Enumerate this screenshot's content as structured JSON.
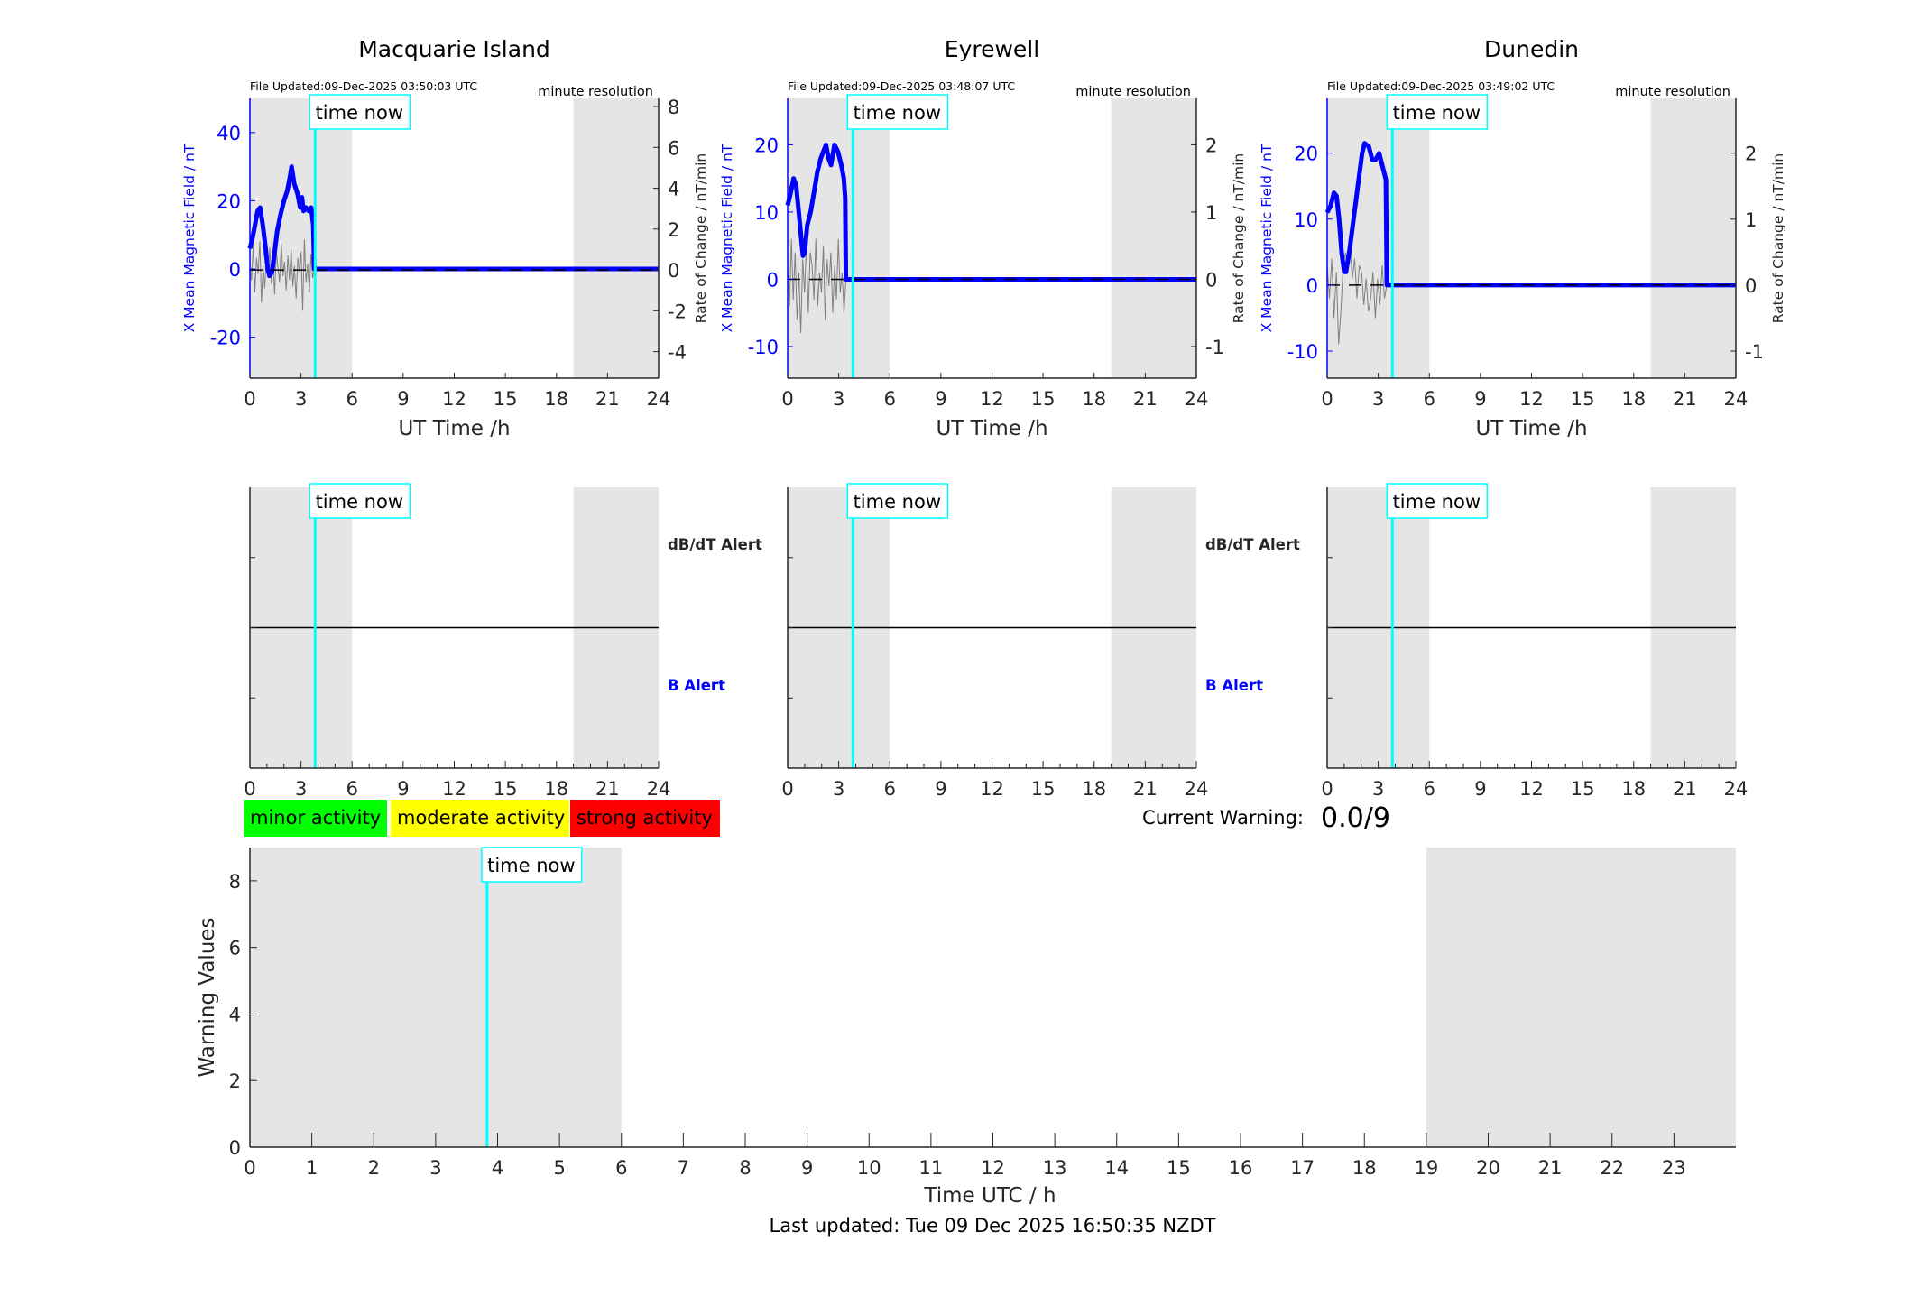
{
  "colors": {
    "field": "#0000ff",
    "rate": "#808080",
    "time_now": "#00ffff",
    "night_shade": "#e5e5e5",
    "minor": "#00ff00",
    "moderate": "#ffff00",
    "strong": "#ff0000"
  },
  "common": {
    "time_now_label": "time now",
    "resolution": "minute resolution",
    "xlabel": "UT Time /h",
    "ylabel_left": "X Mean Magnetic Field / nT",
    "ylabel_right": "Rate of Change / nT/min",
    "dbdt_alert": "dB/dT Alert",
    "b_alert": "B Alert"
  },
  "legend": {
    "minor": "minor activity",
    "moderate": "moderate activity",
    "strong": "strong activity"
  },
  "current_warning": {
    "label": "Current Warning:",
    "value": "0.0/9"
  },
  "footer": {
    "last_updated": "Last updated: Tue 09 Dec 2025 16:50:35 NZDT"
  },
  "chart_data": [
    {
      "type": "line",
      "title": "Macquarie Island",
      "file_updated": "File Updated:09-Dec-2025 03:50:03 UTC",
      "xlim": [
        0,
        24
      ],
      "xticks": [
        0,
        3,
        6,
        9,
        12,
        15,
        18,
        21,
        24
      ],
      "ylim_left": [
        -32,
        50
      ],
      "yticks_left": [
        -20,
        0,
        20,
        40
      ],
      "ylim_right": [
        -5.3,
        8.4
      ],
      "yticks_right": [
        -4,
        -2,
        0,
        2,
        4,
        6,
        8
      ],
      "time_now": 3.83,
      "shaded": [
        [
          0,
          6
        ],
        [
          19,
          24
        ]
      ],
      "field": [
        [
          0,
          6
        ],
        [
          0.15,
          9
        ],
        [
          0.3,
          13
        ],
        [
          0.45,
          17
        ],
        [
          0.6,
          18
        ],
        [
          0.75,
          13
        ],
        [
          0.9,
          7
        ],
        [
          1.05,
          0
        ],
        [
          1.15,
          -2
        ],
        [
          1.3,
          -1
        ],
        [
          1.45,
          5
        ],
        [
          1.6,
          11
        ],
        [
          1.8,
          16
        ],
        [
          2.0,
          20
        ],
        [
          2.2,
          23
        ],
        [
          2.35,
          27
        ],
        [
          2.45,
          30
        ],
        [
          2.6,
          25
        ],
        [
          2.8,
          22
        ],
        [
          2.95,
          18
        ],
        [
          3.05,
          21
        ],
        [
          3.15,
          17
        ],
        [
          3.3,
          18
        ],
        [
          3.45,
          17
        ],
        [
          3.6,
          18
        ],
        [
          3.72,
          13
        ],
        [
          3.78,
          0
        ],
        [
          24,
          0
        ]
      ],
      "rate": [
        0.3,
        -0.5,
        1.2,
        -1.1,
        0.6,
        -0.2,
        1.4,
        -1.6,
        0.2,
        -0.9,
        0.8,
        -0.4,
        1.1,
        -0.7,
        0.5,
        -1.2,
        0.9,
        0.1,
        -0.6,
        1.3,
        -0.3,
        0.4,
        -1.0,
        0.7,
        -0.5,
        1.0,
        -0.8,
        0.2,
        -1.4,
        0.6,
        -0.1,
        0.9,
        -2.0,
        1.5,
        -0.6,
        0.3,
        -1.1,
        0.8,
        -0.4,
        0
      ],
      "middle_yticks": 3
    },
    {
      "type": "line",
      "title": "Eyrewell",
      "file_updated": "File Updated:09-Dec-2025 03:48:07 UTC",
      "xlim": [
        0,
        24
      ],
      "xticks": [
        0,
        3,
        6,
        9,
        12,
        15,
        18,
        21,
        24
      ],
      "ylim_left": [
        -14.7,
        26.9
      ],
      "yticks_left": [
        -10,
        0,
        10,
        20
      ],
      "ylim_right": [
        -1.47,
        2.69
      ],
      "yticks_right": [
        -1,
        0,
        1,
        2
      ],
      "time_now": 3.83,
      "shaded": [
        [
          0,
          6
        ],
        [
          19,
          24
        ]
      ],
      "field": [
        [
          0,
          11
        ],
        [
          0.15,
          12.5
        ],
        [
          0.35,
          15
        ],
        [
          0.5,
          14
        ],
        [
          0.65,
          10
        ],
        [
          0.8,
          6
        ],
        [
          0.9,
          3.5
        ],
        [
          1.0,
          4
        ],
        [
          1.15,
          8
        ],
        [
          1.35,
          10
        ],
        [
          1.55,
          13
        ],
        [
          1.75,
          16
        ],
        [
          1.95,
          18
        ],
        [
          2.1,
          19
        ],
        [
          2.25,
          20
        ],
        [
          2.4,
          18
        ],
        [
          2.55,
          17
        ],
        [
          2.75,
          20
        ],
        [
          2.95,
          19
        ],
        [
          3.15,
          17
        ],
        [
          3.3,
          15
        ],
        [
          3.38,
          12
        ],
        [
          3.42,
          0
        ],
        [
          24,
          0
        ]
      ],
      "rate": [
        0.2,
        -0.4,
        0.6,
        -0.3,
        0.4,
        -0.6,
        0.1,
        -0.8,
        0.3,
        -0.2,
        0.5,
        -0.5,
        0.4,
        0.2,
        -0.3,
        0.6,
        -0.4,
        0.1,
        -0.2,
        0.5,
        -0.6,
        0.3,
        -0.1,
        0.4,
        -0.5,
        0.2,
        -0.3,
        0.6,
        -0.2,
        0.1,
        -0.5,
        0
      ],
      "middle_yticks": 3
    },
    {
      "type": "line",
      "title": "Dunedin",
      "file_updated": "File Updated:09-Dec-2025 03:49:02 UTC",
      "xlim": [
        0,
        24
      ],
      "xticks": [
        0,
        3,
        6,
        9,
        12,
        15,
        18,
        21,
        24
      ],
      "ylim_left": [
        -14.1,
        28.3
      ],
      "yticks_left": [
        -10,
        0,
        10,
        20
      ],
      "ylim_right": [
        -1.41,
        2.83
      ],
      "yticks_right": [
        -1,
        0,
        1,
        2
      ],
      "time_now": 3.83,
      "shaded": [
        [
          0,
          6
        ],
        [
          19,
          24
        ]
      ],
      "field": [
        [
          0,
          11
        ],
        [
          0.2,
          12
        ],
        [
          0.4,
          14
        ],
        [
          0.55,
          13.5
        ],
        [
          0.7,
          10
        ],
        [
          0.85,
          5
        ],
        [
          1.0,
          2
        ],
        [
          1.1,
          2
        ],
        [
          1.3,
          5
        ],
        [
          1.5,
          9
        ],
        [
          1.7,
          13
        ],
        [
          1.9,
          17
        ],
        [
          2.05,
          20
        ],
        [
          2.2,
          21.5
        ],
        [
          2.45,
          21
        ],
        [
          2.65,
          19
        ],
        [
          2.85,
          19
        ],
        [
          3.05,
          20
        ],
        [
          3.25,
          18
        ],
        [
          3.45,
          16
        ],
        [
          3.5,
          0
        ],
        [
          24,
          0
        ]
      ],
      "rate": [
        0.3,
        -0.2,
        0.4,
        -0.5,
        0.2,
        -0.9,
        -0.4,
        0.3,
        0.5,
        0.2,
        0.6,
        0.1,
        0.4,
        -0.2,
        0.3,
        0.2,
        -0.3,
        0.1,
        -0.4,
        -0.2,
        0.2,
        -0.5,
        0.1,
        -0.3,
        0.3,
        -0.2,
        0
      ],
      "middle_yticks": 3
    },
    {
      "type": "line",
      "title": "",
      "xlabel": "Time UTC / h",
      "ylabel": "Warning Values",
      "xlim": [
        0,
        24
      ],
      "xticks": [
        0,
        1,
        2,
        3,
        4,
        5,
        6,
        7,
        8,
        9,
        10,
        11,
        12,
        13,
        14,
        15,
        16,
        17,
        18,
        19,
        20,
        21,
        22,
        23
      ],
      "ylim": [
        0,
        9
      ],
      "yticks": [
        0,
        2,
        4,
        6,
        8
      ],
      "time_now": 3.83,
      "shaded": [
        [
          0,
          6
        ],
        [
          19,
          24
        ]
      ],
      "values": []
    }
  ]
}
